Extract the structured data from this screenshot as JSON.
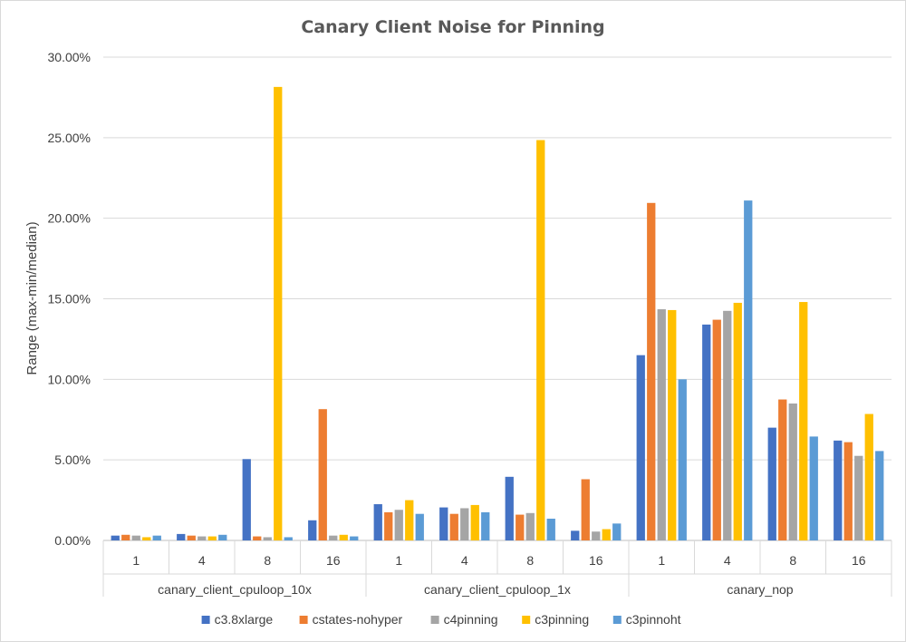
{
  "chart_data": {
    "type": "bar",
    "title": "Canary Client Noise for Pinning",
    "xlabel": "",
    "ylabel": "Range (max-min/median)",
    "ylim": [
      0,
      30
    ],
    "y_ticks": [
      "0.00%",
      "5.00%",
      "10.00%",
      "15.00%",
      "20.00%",
      "25.00%",
      "30.00%"
    ],
    "y_tick_values": [
      0,
      5,
      10,
      15,
      20,
      25,
      30
    ],
    "grid": true,
    "legend_position": "bottom",
    "groups": [
      {
        "label": "canary_client_cpuloop_10x",
        "categories": [
          "1",
          "4",
          "8",
          "16"
        ]
      },
      {
        "label": "canary_client_cpuloop_1x",
        "categories": [
          "1",
          "4",
          "8",
          "16"
        ]
      },
      {
        "label": "canary_nop",
        "categories": [
          "1",
          "4",
          "8",
          "16"
        ]
      }
    ],
    "series": [
      {
        "name": "c3.8xlarge",
        "color": "#4472c4",
        "values": [
          0.3,
          0.4,
          5.05,
          1.25,
          2.25,
          2.05,
          3.95,
          0.6,
          11.5,
          13.4,
          7.0,
          6.2
        ]
      },
      {
        "name": "cstates-nohyper",
        "color": "#ed7d31",
        "values": [
          0.35,
          0.3,
          0.25,
          8.15,
          1.75,
          1.65,
          1.6,
          3.8,
          20.95,
          13.7,
          8.75,
          6.1
        ]
      },
      {
        "name": "c4pinning",
        "color": "#a5a5a5",
        "values": [
          0.3,
          0.25,
          0.2,
          0.3,
          1.9,
          2.0,
          1.7,
          0.55,
          14.35,
          14.25,
          8.5,
          5.25
        ]
      },
      {
        "name": "c3pinning",
        "color": "#ffc000",
        "values": [
          0.2,
          0.25,
          28.15,
          0.35,
          2.5,
          2.2,
          24.85,
          0.7,
          14.3,
          14.75,
          14.8,
          7.85
        ]
      },
      {
        "name": "c3pinnoht",
        "color": "#5b9bd5",
        "values": [
          0.3,
          0.35,
          0.2,
          0.25,
          1.65,
          1.75,
          1.35,
          1.05,
          10.0,
          21.1,
          6.45,
          5.55
        ]
      }
    ]
  }
}
